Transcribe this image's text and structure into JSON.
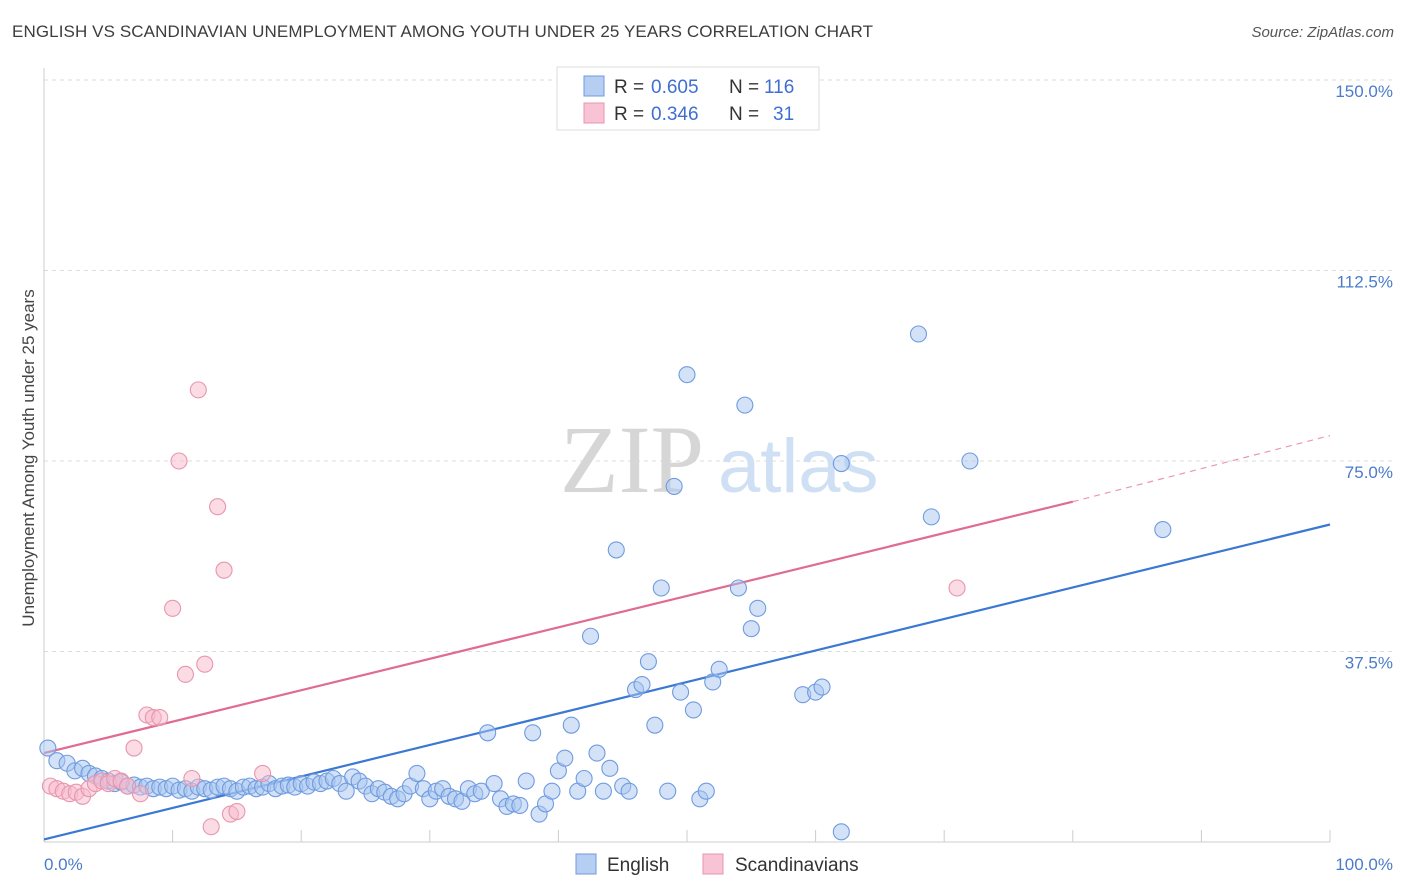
{
  "title": "ENGLISH VS SCANDINAVIAN UNEMPLOYMENT AMONG YOUTH UNDER 25 YEARS CORRELATION CHART",
  "source": "Source: ZipAtlas.com",
  "watermark": {
    "zip": "ZIP",
    "atlas": "atlas"
  },
  "legend_top": [
    {
      "r_label": "R =",
      "r_value": "0.605",
      "n_label": "N =",
      "n_value": "116",
      "color": "#a8c6f0",
      "stroke": "#6f9be0"
    },
    {
      "r_label": "R =",
      "r_value": "0.346",
      "n_label": "N =",
      "n_value": "31",
      "color": "#f7b9cc",
      "stroke": "#e895ad"
    }
  ],
  "legend_bottom": [
    {
      "label": "English",
      "color": "#a8c6f0",
      "stroke": "#6f9be0"
    },
    {
      "label": "Scandinavians",
      "color": "#f7b9cc",
      "stroke": "#e895ad"
    }
  ],
  "chart_data": {
    "type": "scatter",
    "title": "ENGLISH VS SCANDINAVIAN UNEMPLOYMENT AMONG YOUTH UNDER 25 YEARS CORRELATION CHART",
    "xlabel": "",
    "ylabel": "Unemployment Among Youth under 25 years",
    "xlim": [
      0,
      100
    ],
    "ylim": [
      0,
      150
    ],
    "x_tick_labels": [
      {
        "value": 0,
        "label": "0.0%"
      },
      {
        "value": 100,
        "label": "100.0%"
      }
    ],
    "y_tick_labels": [
      {
        "value": 37.5,
        "label": "37.5%"
      },
      {
        "value": 75,
        "label": "75.0%"
      },
      {
        "value": 112.5,
        "label": "112.5%"
      },
      {
        "value": 150,
        "label": "150.0%"
      }
    ],
    "y_gridlines": [
      37.5,
      75,
      112.5,
      150
    ],
    "x_minor_ticks": [
      10,
      20,
      30,
      40,
      50,
      60,
      70,
      80,
      90,
      100
    ],
    "series": [
      {
        "name": "English",
        "color": "#a8c6f0",
        "stroke": "#6f9be0",
        "trend": {
          "x0": 0,
          "y0": 0.5,
          "x1": 100,
          "y1": 62.5,
          "color": "#3b78d4"
        },
        "points": [
          [
            0.3,
            18.5
          ],
          [
            1.0,
            16.0
          ],
          [
            1.8,
            15.5
          ],
          [
            2.4,
            14.0
          ],
          [
            3.0,
            14.5
          ],
          [
            3.5,
            13.5
          ],
          [
            4.0,
            13.0
          ],
          [
            4.5,
            12.5
          ],
          [
            5.0,
            12.0
          ],
          [
            5.5,
            11.5
          ],
          [
            6.0,
            11.8
          ],
          [
            6.5,
            11.0
          ],
          [
            7.0,
            11.2
          ],
          [
            7.5,
            10.8
          ],
          [
            8.0,
            11.0
          ],
          [
            8.5,
            10.5
          ],
          [
            9.0,
            10.8
          ],
          [
            9.5,
            10.5
          ],
          [
            10.0,
            11.0
          ],
          [
            10.5,
            10.2
          ],
          [
            11.0,
            10.5
          ],
          [
            11.5,
            10.0
          ],
          [
            12.0,
            10.8
          ],
          [
            12.5,
            10.5
          ],
          [
            13.0,
            10.2
          ],
          [
            13.5,
            10.8
          ],
          [
            14.0,
            11.0
          ],
          [
            14.5,
            10.5
          ],
          [
            15.0,
            10.0
          ],
          [
            15.5,
            10.8
          ],
          [
            16.0,
            11.0
          ],
          [
            16.5,
            10.5
          ],
          [
            17.0,
            10.8
          ],
          [
            17.5,
            11.5
          ],
          [
            18.0,
            10.5
          ],
          [
            18.5,
            11.0
          ],
          [
            19.0,
            11.2
          ],
          [
            19.5,
            10.8
          ],
          [
            20.0,
            11.5
          ],
          [
            20.5,
            11.0
          ],
          [
            21.0,
            11.8
          ],
          [
            21.5,
            11.5
          ],
          [
            22.0,
            12.0
          ],
          [
            22.5,
            12.5
          ],
          [
            23.0,
            11.5
          ],
          [
            23.5,
            10.0
          ],
          [
            24.0,
            12.8
          ],
          [
            24.5,
            12.0
          ],
          [
            25.0,
            11.0
          ],
          [
            25.5,
            9.5
          ],
          [
            26.0,
            10.5
          ],
          [
            26.5,
            9.8
          ],
          [
            27.0,
            9.0
          ],
          [
            27.5,
            8.5
          ],
          [
            28.0,
            9.5
          ],
          [
            28.5,
            11.0
          ],
          [
            29.0,
            13.5
          ],
          [
            29.5,
            10.5
          ],
          [
            30.0,
            8.5
          ],
          [
            30.5,
            10.0
          ],
          [
            31.0,
            10.5
          ],
          [
            31.5,
            9.0
          ],
          [
            32.0,
            8.5
          ],
          [
            32.5,
            8.0
          ],
          [
            33.0,
            10.5
          ],
          [
            33.5,
            9.5
          ],
          [
            34.0,
            10.0
          ],
          [
            34.5,
            21.5
          ],
          [
            35.0,
            11.5
          ],
          [
            35.5,
            8.5
          ],
          [
            36.0,
            7.0
          ],
          [
            36.5,
            7.5
          ],
          [
            37.0,
            7.2
          ],
          [
            37.5,
            12.0
          ],
          [
            38.0,
            21.5
          ],
          [
            38.5,
            5.5
          ],
          [
            39.0,
            7.5
          ],
          [
            39.5,
            10.0
          ],
          [
            40.0,
            14.0
          ],
          [
            40.5,
            16.5
          ],
          [
            41.0,
            23.0
          ],
          [
            41.5,
            10.0
          ],
          [
            42.0,
            12.5
          ],
          [
            42.5,
            40.5
          ],
          [
            43.0,
            17.5
          ],
          [
            43.5,
            10.0
          ],
          [
            44.0,
            14.5
          ],
          [
            44.5,
            57.5
          ],
          [
            45.0,
            11.0
          ],
          [
            45.5,
            10.0
          ],
          [
            46.0,
            30.0
          ],
          [
            46.5,
            31.0
          ],
          [
            47.0,
            35.5
          ],
          [
            47.5,
            23.0
          ],
          [
            48.0,
            50.0
          ],
          [
            48.5,
            10.0
          ],
          [
            49.0,
            70.0
          ],
          [
            49.5,
            29.5
          ],
          [
            50.0,
            92.0
          ],
          [
            50.5,
            26.0
          ],
          [
            51.0,
            8.5
          ],
          [
            51.5,
            10.0
          ],
          [
            52.0,
            31.5
          ],
          [
            52.5,
            34.0
          ],
          [
            54.0,
            50.0
          ],
          [
            54.5,
            86.0
          ],
          [
            55.0,
            42.0
          ],
          [
            55.5,
            46.0
          ],
          [
            59.0,
            29.0
          ],
          [
            60.0,
            29.5
          ],
          [
            60.5,
            30.5
          ],
          [
            62.0,
            74.5
          ],
          [
            62.0,
            2.0
          ],
          [
            68.0,
            100.0
          ],
          [
            69.0,
            64.0
          ],
          [
            72.0,
            75.0
          ],
          [
            87.0,
            61.5
          ]
        ]
      },
      {
        "name": "Scandinavians",
        "color": "#f7b9cc",
        "stroke": "#e895ad",
        "trend": {
          "x0": 0,
          "y0": 17.5,
          "x1": 80,
          "y1": 67.0,
          "dash_x1": 100,
          "dash_y1": 80.0,
          "color": "#e06b93"
        },
        "points": [
          [
            0.5,
            11.0
          ],
          [
            1.0,
            10.5
          ],
          [
            1.5,
            10.0
          ],
          [
            2.0,
            9.5
          ],
          [
            2.5,
            9.8
          ],
          [
            3.0,
            9.0
          ],
          [
            3.5,
            10.5
          ],
          [
            4.0,
            11.5
          ],
          [
            4.5,
            12.0
          ],
          [
            5.0,
            11.5
          ],
          [
            5.5,
            12.5
          ],
          [
            6.0,
            12.0
          ],
          [
            6.5,
            11.0
          ],
          [
            7.0,
            18.5
          ],
          [
            7.5,
            9.5
          ],
          [
            8.0,
            25.0
          ],
          [
            8.5,
            24.5
          ],
          [
            9.0,
            24.5
          ],
          [
            10.0,
            46.0
          ],
          [
            10.5,
            75.0
          ],
          [
            11.0,
            33.0
          ],
          [
            11.5,
            12.5
          ],
          [
            12.0,
            89.0
          ],
          [
            12.5,
            35.0
          ],
          [
            13.0,
            3.0
          ],
          [
            13.5,
            66.0
          ],
          [
            14.0,
            53.5
          ],
          [
            14.5,
            5.5
          ],
          [
            15.0,
            6.0
          ],
          [
            17.0,
            13.5
          ],
          [
            71.0,
            50.0
          ]
        ]
      }
    ]
  }
}
